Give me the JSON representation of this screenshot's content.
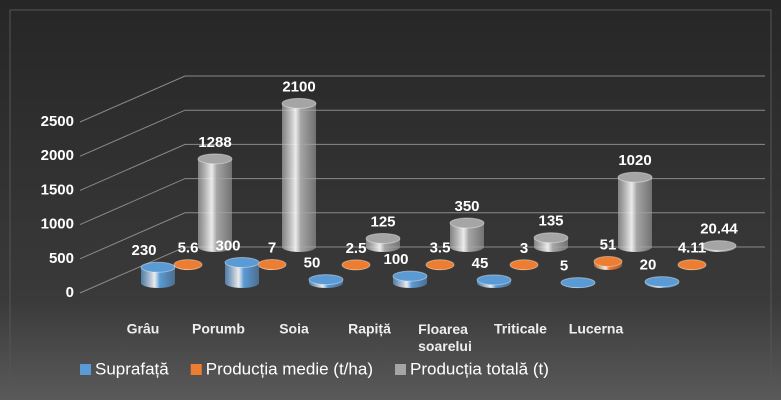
{
  "chart_data": {
    "type": "bar3d",
    "categories": [
      "Grâu",
      "Porumb",
      "Soia",
      "Rapiță",
      "Floarea soarelui",
      "Triticale",
      "Lucerna"
    ],
    "series": [
      {
        "name": "Suprafață",
        "color": "#5b9bd5",
        "values": [
          230,
          300,
          50,
          100,
          45,
          5,
          20
        ]
      },
      {
        "name": "Producția medie (t/ha)",
        "color": "#ed7d31",
        "values": [
          5.6,
          7,
          2.5,
          3.5,
          3,
          51,
          4.11
        ]
      },
      {
        "name": "Producția totală (t)",
        "color": "#a5a5a5",
        "values": [
          1288,
          2100,
          125,
          350,
          135,
          1020,
          20.44
        ]
      }
    ],
    "ylim": [
      0,
      2500
    ],
    "yticks": [
      0,
      500,
      1000,
      1500,
      2000,
      2500
    ],
    "grid": true,
    "legend": "bottom"
  }
}
